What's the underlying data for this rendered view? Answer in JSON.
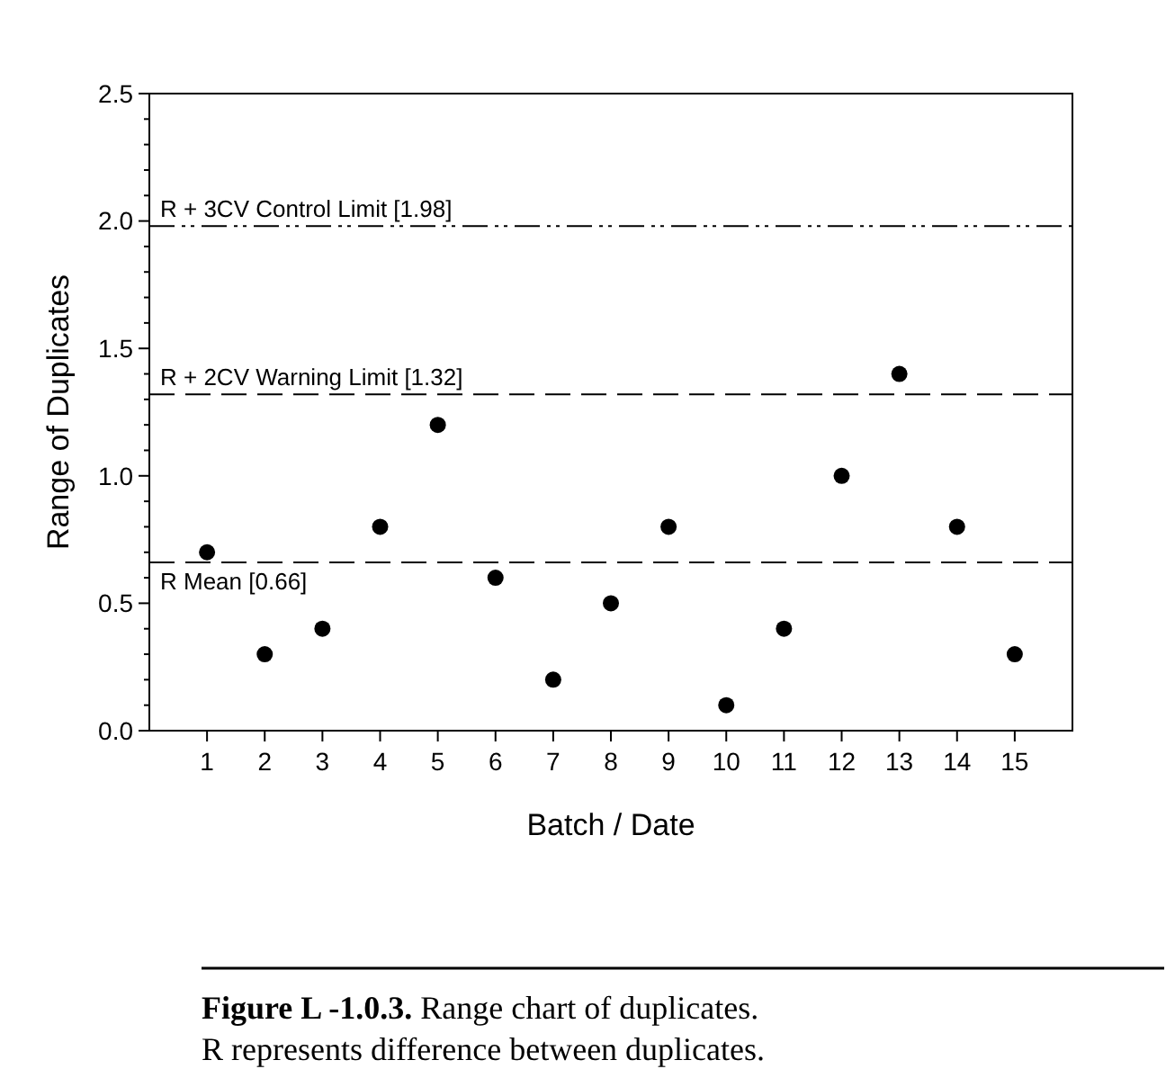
{
  "chart_data": {
    "type": "scatter",
    "xlabel": "Batch / Date",
    "ylabel": "Range of Duplicates",
    "x": [
      1,
      2,
      3,
      4,
      5,
      6,
      7,
      8,
      9,
      10,
      11,
      12,
      13,
      14,
      15
    ],
    "xlim": [
      0,
      16
    ],
    "xticks": [
      1,
      2,
      3,
      4,
      5,
      6,
      7,
      8,
      9,
      10,
      11,
      12,
      13,
      14,
      15
    ],
    "values": [
      0.7,
      0.3,
      0.4,
      0.8,
      1.2,
      0.6,
      0.2,
      0.5,
      0.8,
      0.1,
      0.4,
      1.0,
      1.4,
      0.8,
      0.3
    ],
    "color": "#000000",
    "marker": "circle",
    "grid": false,
    "ylim": [
      0,
      2.5
    ],
    "yticks": [
      {
        "value": 0,
        "label": "0.0"
      },
      {
        "value": 0.5,
        "label": "0.5"
      },
      {
        "value": 1,
        "label": "1.0"
      },
      {
        "value": 1.5,
        "label": "1.5"
      },
      {
        "value": 2,
        "label": "2.0"
      },
      {
        "value": 2.5,
        "label": "2.5"
      }
    ],
    "ref_lines": [
      {
        "axis": "y",
        "value": 1.98,
        "label": "R + 3CV Control Limit [1.98]",
        "color": "#000000",
        "line_style": "dashdotdot"
      },
      {
        "axis": "y",
        "value": 1.32,
        "label": "R + 2CV Warning Limit [1.32]",
        "color": "#000000",
        "line_style": "dashed"
      },
      {
        "axis": "y",
        "value": 0.66,
        "label": "R Mean [0.66]",
        "color": "#000000",
        "line_style": "dashed"
      }
    ],
    "annotations": [
      "Figure L -1.0.3. Range chart of duplicates.",
      "R represents difference between duplicates."
    ]
  }
}
